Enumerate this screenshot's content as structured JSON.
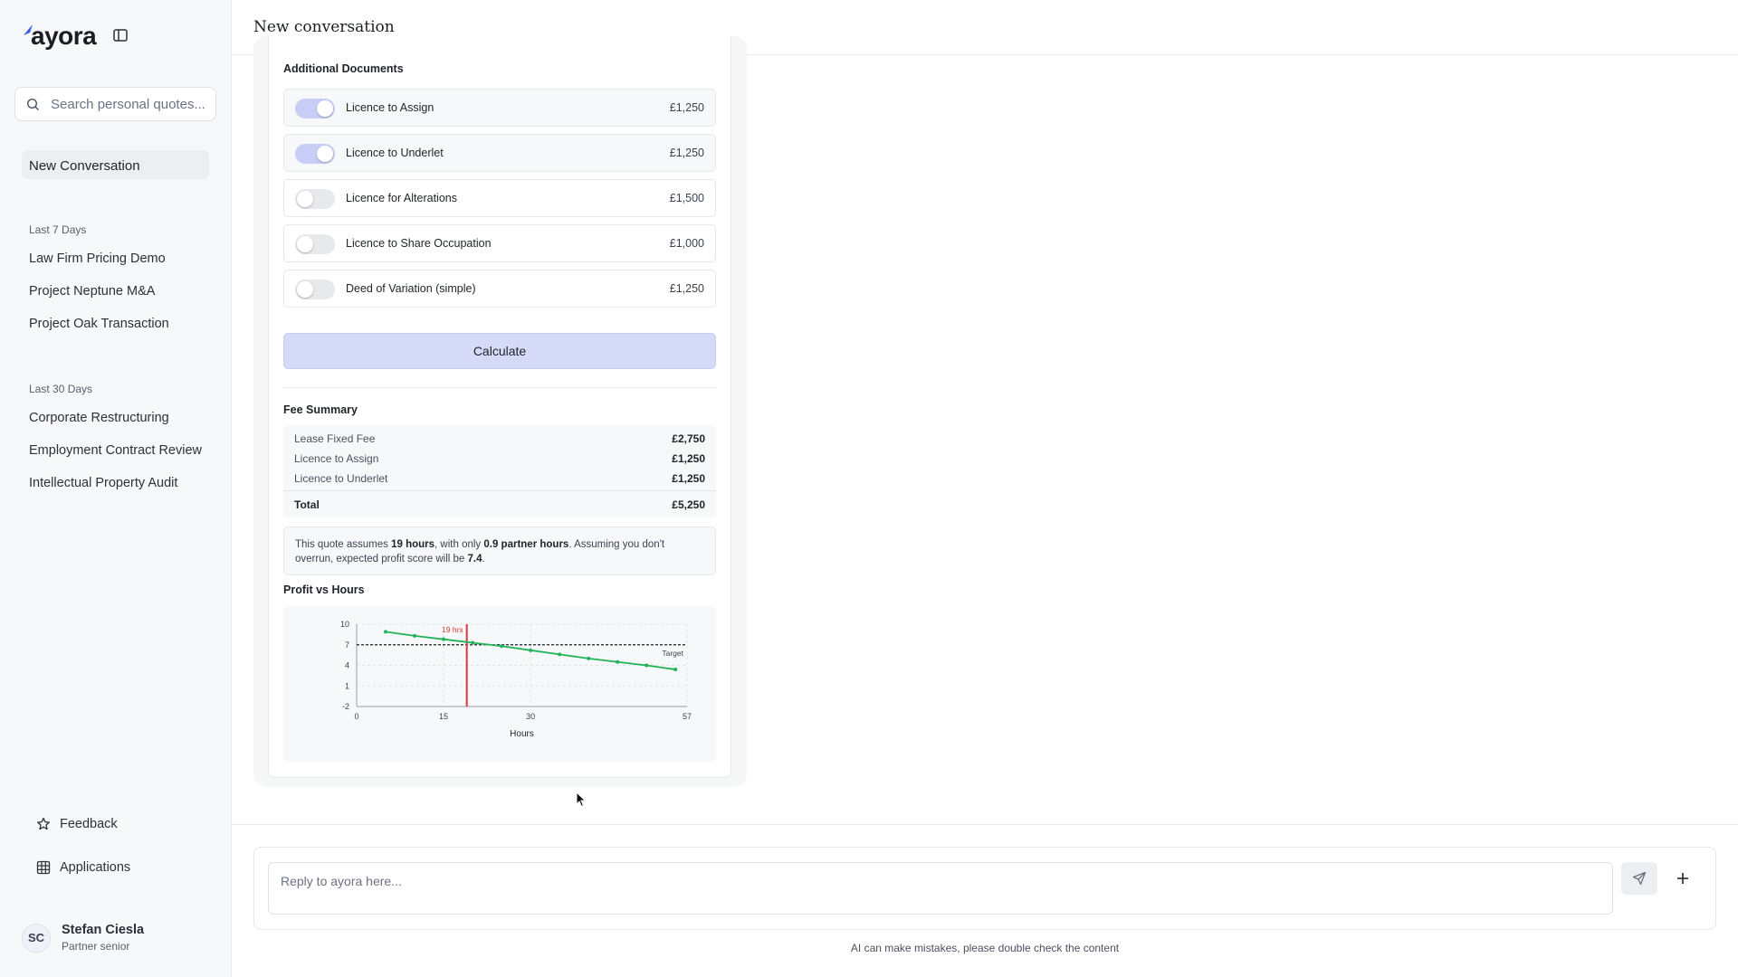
{
  "app": {
    "logo": "ayora",
    "brand_color": "#3a57e8"
  },
  "sidebar": {
    "search_placeholder": "Search personal quotes...",
    "new_conversation": "New Conversation",
    "sections": [
      {
        "label": "Last 7 Days",
        "items": [
          "Law Firm Pricing Demo",
          "Project Neptune M&A",
          "Project Oak Transaction"
        ]
      },
      {
        "label": "Last 30 Days",
        "items": [
          "Corporate Restructuring",
          "Employment Contract Review",
          "Intellectual Property Audit"
        ]
      }
    ],
    "feedback": "Feedback",
    "applications": "Applications",
    "user": {
      "initials": "SC",
      "name": "Stefan Ciesla",
      "role": "Partner senior"
    }
  },
  "header": {
    "title": "New conversation"
  },
  "quote": {
    "additional_title": "Additional Documents",
    "documents": [
      {
        "label": "Licence to Assign",
        "price": "£1,250",
        "enabled": true
      },
      {
        "label": "Licence to Underlet",
        "price": "£1,250",
        "enabled": true
      },
      {
        "label": "Licence for Alterations",
        "price": "£1,500",
        "enabled": false
      },
      {
        "label": "Licence to Share Occupation",
        "price": "£1,000",
        "enabled": false
      },
      {
        "label": "Deed of Variation (simple)",
        "price": "£1,250",
        "enabled": false
      }
    ],
    "calculate_label": "Calculate",
    "summary_title": "Fee Summary",
    "summary": [
      {
        "label": "Lease Fixed Fee",
        "value": "£2,750"
      },
      {
        "label": "Licence to Assign",
        "value": "£1,250"
      },
      {
        "label": "Licence to Underlet",
        "value": "£1,250"
      }
    ],
    "total_label": "Total",
    "total_value": "£5,250",
    "note": {
      "p1": "This quote assumes ",
      "hours": "19 hours",
      "p2": ", with only ",
      "partner_hours": "0.9 partner hours",
      "p3": ". Assuming you don't overrun, expected profit score will be ",
      "score": "7.4",
      "p4": "."
    },
    "chart_title": "Profit vs Hours"
  },
  "chart_data": {
    "type": "line",
    "title": "Profit vs Hours",
    "xlabel": "Hours",
    "ylabel": "",
    "xlim": [
      0,
      57
    ],
    "ylim": [
      -2,
      10
    ],
    "x_ticks": [
      "0",
      "15",
      "30",
      "57"
    ],
    "y_ticks": [
      "10",
      "7",
      "4",
      "1",
      "-2"
    ],
    "series": [
      {
        "color": "#22b35a",
        "x": [
          5,
          10,
          15,
          20,
          25,
          30,
          35,
          40,
          45,
          50,
          55
        ],
        "y": [
          8.9,
          8.3,
          7.8,
          7.3,
          6.8,
          6.2,
          5.6,
          5.0,
          4.5,
          4.0,
          3.4
        ]
      }
    ],
    "target": {
      "value": 7,
      "label": "Target"
    },
    "marker": {
      "x": 19,
      "label": "19 hrs",
      "color": "#d63b3b"
    },
    "grid": true
  },
  "composer": {
    "placeholder": "Reply to ayora here...",
    "disclaimer": "AI can make mistakes, please double check the content"
  }
}
